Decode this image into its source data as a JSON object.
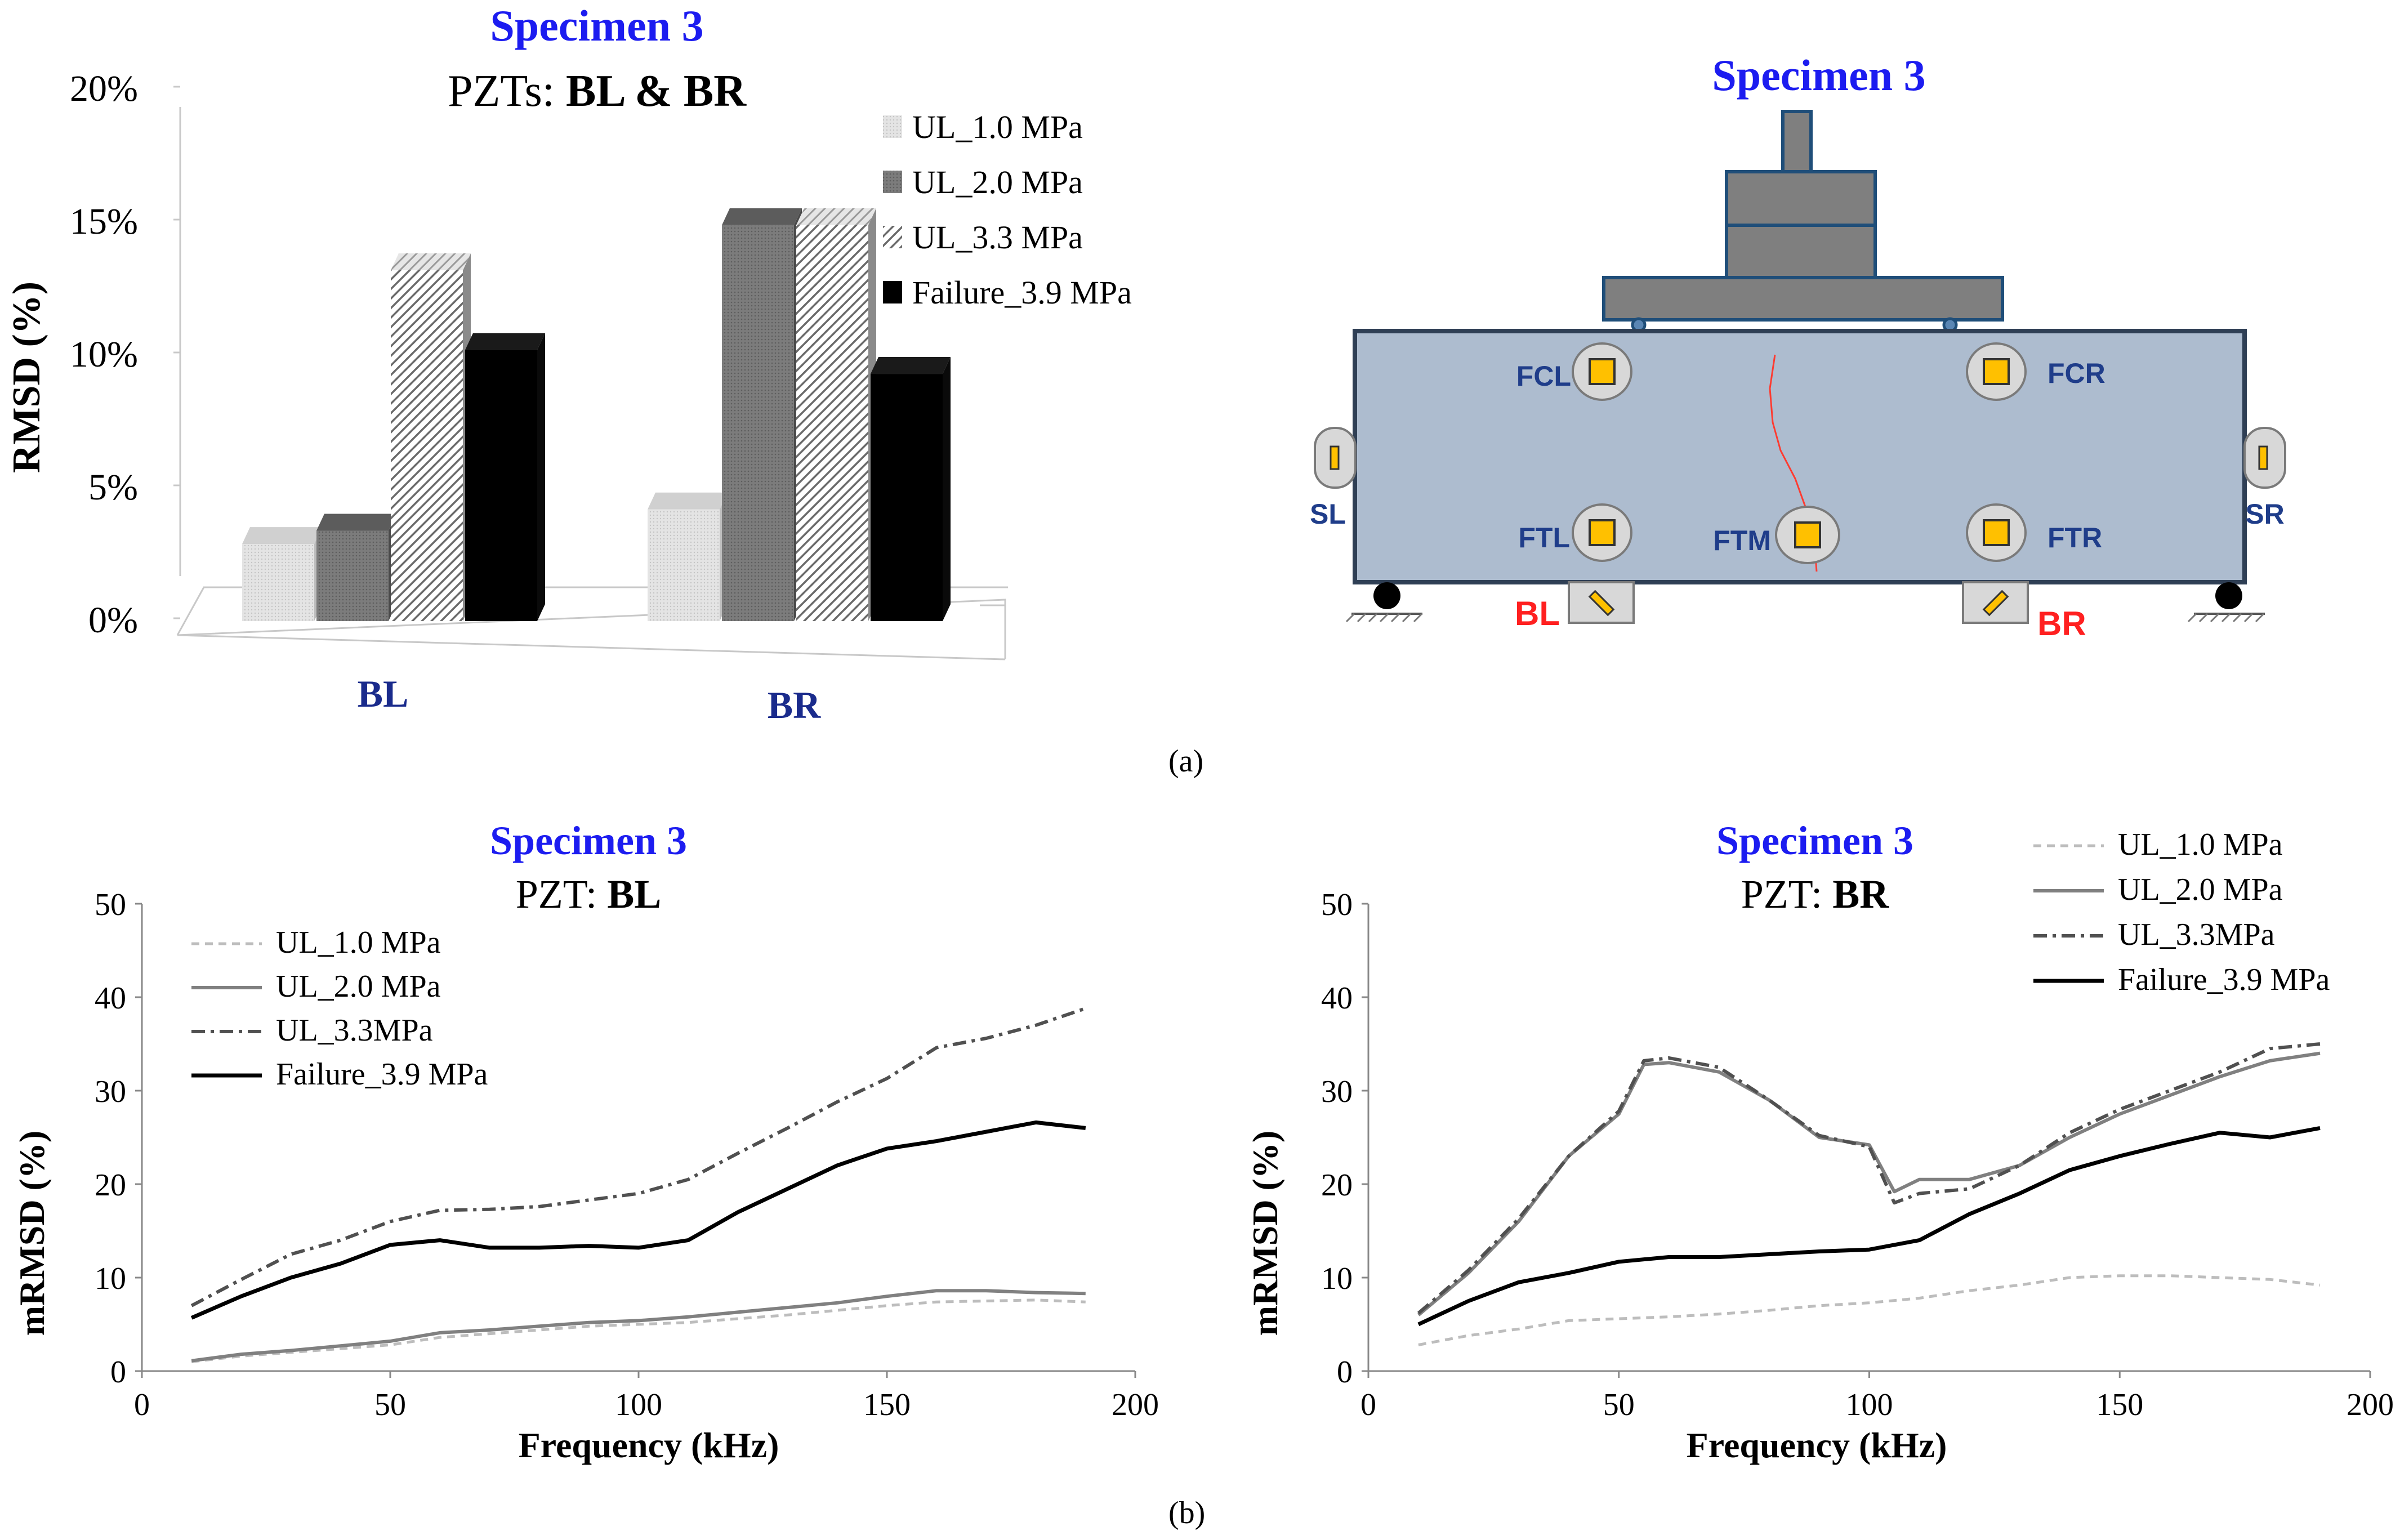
{
  "caption_a": "(a)",
  "caption_b": "(b)",
  "bar_chart": {
    "title": "Specimen 3",
    "subtitle_prefix": "PZTs: ",
    "subtitle_bold": "BL & BR",
    "ylabel": "RMSD (%)",
    "yticks": [
      "0%",
      "5%",
      "10%",
      "15%",
      "20%"
    ],
    "legend": [
      "UL_1.0 MPa",
      "UL_2.0 MPa",
      "UL_3.3 MPa",
      "Failure_3.9 MPa"
    ]
  },
  "line_chart_bl": {
    "title": "Specimen 3",
    "subtitle_prefix": "PZT: ",
    "subtitle_bold": "BL",
    "xlabel": "Frequency (kHz)",
    "ylabel": "mRMSD (%)",
    "legend": [
      "UL_1.0 MPa",
      "UL_2.0 MPa",
      "UL_3.3MPa",
      "Failure_3.9 MPa"
    ]
  },
  "line_chart_br": {
    "title": "Specimen 3",
    "subtitle_prefix": "PZT: ",
    "subtitle_bold": "BR",
    "xlabel": "Frequency (kHz)",
    "ylabel": "mRMSD (%)",
    "legend": [
      "UL_1.0 MPa",
      "UL_2.0 MPa",
      "UL_3.3MPa",
      "Failure_3.9 MPa"
    ]
  },
  "diagram": {
    "title": "Specimen 3",
    "sensors": [
      "FCL",
      "FCR",
      "FTL",
      "FTM",
      "FTR",
      "SL",
      "SR",
      "BL",
      "BR"
    ]
  },
  "chart_data": [
    {
      "type": "bar",
      "title": "Specimen 3",
      "subtitle": "PZTs: BL & BR",
      "categories": [
        "BL",
        "BR"
      ],
      "series": [
        {
          "name": "UL_1.0 MPa",
          "values": [
            2.9,
            4.2
          ],
          "color": "#dcdcdc"
        },
        {
          "name": "UL_2.0 MPa",
          "values": [
            3.4,
            14.9
          ],
          "color": "#7a7a7a"
        },
        {
          "name": "UL_3.3 MPa",
          "values": [
            13.2,
            14.9
          ],
          "color": "#bdbdbd",
          "pattern": "hatch"
        },
        {
          "name": "Failure_3.9 MPa",
          "values": [
            10.2,
            9.3
          ],
          "color": "#000000"
        }
      ],
      "ylabel": "RMSD (%)",
      "ylim": [
        0,
        20
      ],
      "legend_position": "top-right"
    },
    {
      "type": "line",
      "title": "Specimen 3",
      "subtitle": "PZT: BL",
      "xlabel": "Frequency (kHz)",
      "ylabel": "mRMSD (%)",
      "xlim": [
        0,
        200
      ],
      "ylim": [
        0,
        50
      ],
      "xticks": [
        0,
        50,
        100,
        150,
        200
      ],
      "yticks": [
        0,
        10,
        20,
        30,
        40,
        50
      ],
      "legend_position": "top-left",
      "series": [
        {
          "name": "UL_1.0 MPa",
          "style": "dashed",
          "color": "#bdbdbd",
          "x": [
            10,
            20,
            30,
            40,
            50,
            60,
            70,
            80,
            90,
            100,
            110,
            120,
            130,
            140,
            150,
            160,
            170,
            180,
            190
          ],
          "y": [
            1.0,
            1.6,
            2.0,
            2.4,
            2.8,
            3.6,
            4.0,
            4.4,
            4.8,
            5.0,
            5.2,
            5.6,
            6.0,
            6.5,
            7.0,
            7.4,
            7.5,
            7.6,
            7.4
          ]
        },
        {
          "name": "UL_2.0 MPa",
          "style": "solid",
          "color": "#808080",
          "x": [
            10,
            20,
            30,
            40,
            50,
            60,
            70,
            80,
            90,
            100,
            110,
            120,
            130,
            140,
            150,
            160,
            170,
            180,
            190
          ],
          "y": [
            1.1,
            1.8,
            2.2,
            2.7,
            3.2,
            4.1,
            4.4,
            4.8,
            5.2,
            5.4,
            5.8,
            6.3,
            6.8,
            7.3,
            8.0,
            8.6,
            8.6,
            8.4,
            8.3
          ]
        },
        {
          "name": "UL_3.3MPa",
          "style": "dashdot",
          "color": "#505050",
          "x": [
            10,
            20,
            30,
            40,
            50,
            60,
            70,
            80,
            90,
            100,
            110,
            120,
            130,
            140,
            150,
            160,
            170,
            180,
            190
          ],
          "y": [
            7.0,
            9.8,
            12.5,
            14.0,
            16.0,
            17.2,
            17.3,
            17.6,
            18.3,
            19.0,
            20.5,
            23.3,
            26.0,
            28.8,
            31.3,
            34.6,
            35.6,
            37.0,
            38.8
          ]
        },
        {
          "name": "Failure_3.9 MPa",
          "style": "solid",
          "color": "#000000",
          "x": [
            10,
            20,
            30,
            40,
            50,
            60,
            70,
            80,
            90,
            100,
            110,
            120,
            130,
            140,
            150,
            160,
            170,
            180,
            190
          ],
          "y": [
            5.7,
            8.0,
            10.0,
            11.5,
            13.5,
            14.0,
            13.2,
            13.2,
            13.4,
            13.2,
            14.0,
            17.0,
            19.5,
            22.0,
            23.8,
            24.6,
            25.6,
            26.6,
            26.0
          ]
        }
      ]
    },
    {
      "type": "line",
      "title": "Specimen 3",
      "subtitle": "PZT: BR",
      "xlabel": "Frequency (kHz)",
      "ylabel": "mRMSD (%)",
      "xlim": [
        0,
        200
      ],
      "ylim": [
        0,
        50
      ],
      "xticks": [
        0,
        50,
        100,
        150,
        200
      ],
      "yticks": [
        0,
        10,
        20,
        30,
        40,
        50
      ],
      "legend_position": "top-right",
      "series": [
        {
          "name": "UL_1.0 MPa",
          "style": "dashed",
          "color": "#bdbdbd",
          "x": [
            10,
            20,
            30,
            40,
            50,
            60,
            70,
            80,
            90,
            100,
            110,
            120,
            130,
            140,
            150,
            160,
            170,
            180,
            190
          ],
          "y": [
            2.8,
            3.8,
            4.5,
            5.4,
            5.6,
            5.8,
            6.1,
            6.5,
            7.0,
            7.3,
            7.8,
            8.6,
            9.2,
            10.0,
            10.2,
            10.2,
            10.0,
            9.8,
            9.2
          ]
        },
        {
          "name": "UL_2.0 MPa",
          "style": "solid",
          "color": "#808080",
          "x": [
            10,
            20,
            30,
            40,
            50,
            55,
            60,
            70,
            80,
            90,
            100,
            105,
            110,
            120,
            130,
            140,
            150,
            160,
            170,
            180,
            190
          ],
          "y": [
            6.0,
            10.5,
            16.0,
            23.0,
            27.5,
            32.8,
            33.0,
            32.0,
            29.0,
            25.0,
            24.2,
            19.2,
            20.5,
            20.5,
            22.0,
            25.0,
            27.5,
            29.5,
            31.5,
            33.2,
            34.0
          ]
        },
        {
          "name": "UL_3.3MPa",
          "style": "dashdot",
          "color": "#505050",
          "x": [
            10,
            20,
            30,
            40,
            50,
            55,
            60,
            70,
            80,
            90,
            100,
            105,
            110,
            120,
            130,
            140,
            150,
            160,
            170,
            180,
            190
          ],
          "y": [
            6.2,
            10.8,
            16.3,
            23.0,
            27.8,
            33.2,
            33.5,
            32.5,
            29.0,
            25.2,
            24.0,
            18.0,
            19.0,
            19.5,
            22.0,
            25.5,
            28.0,
            30.0,
            32.0,
            34.5,
            35.0
          ]
        },
        {
          "name": "Failure_3.9 MPa",
          "style": "solid",
          "color": "#000000",
          "x": [
            10,
            20,
            30,
            40,
            50,
            60,
            70,
            80,
            90,
            100,
            110,
            120,
            130,
            140,
            150,
            160,
            170,
            180,
            190
          ],
          "y": [
            5.0,
            7.5,
            9.5,
            10.5,
            11.7,
            12.2,
            12.2,
            12.5,
            12.8,
            13.0,
            14.0,
            16.8,
            19.0,
            21.5,
            23.0,
            24.3,
            25.5,
            25.0,
            26.0
          ]
        }
      ]
    }
  ]
}
